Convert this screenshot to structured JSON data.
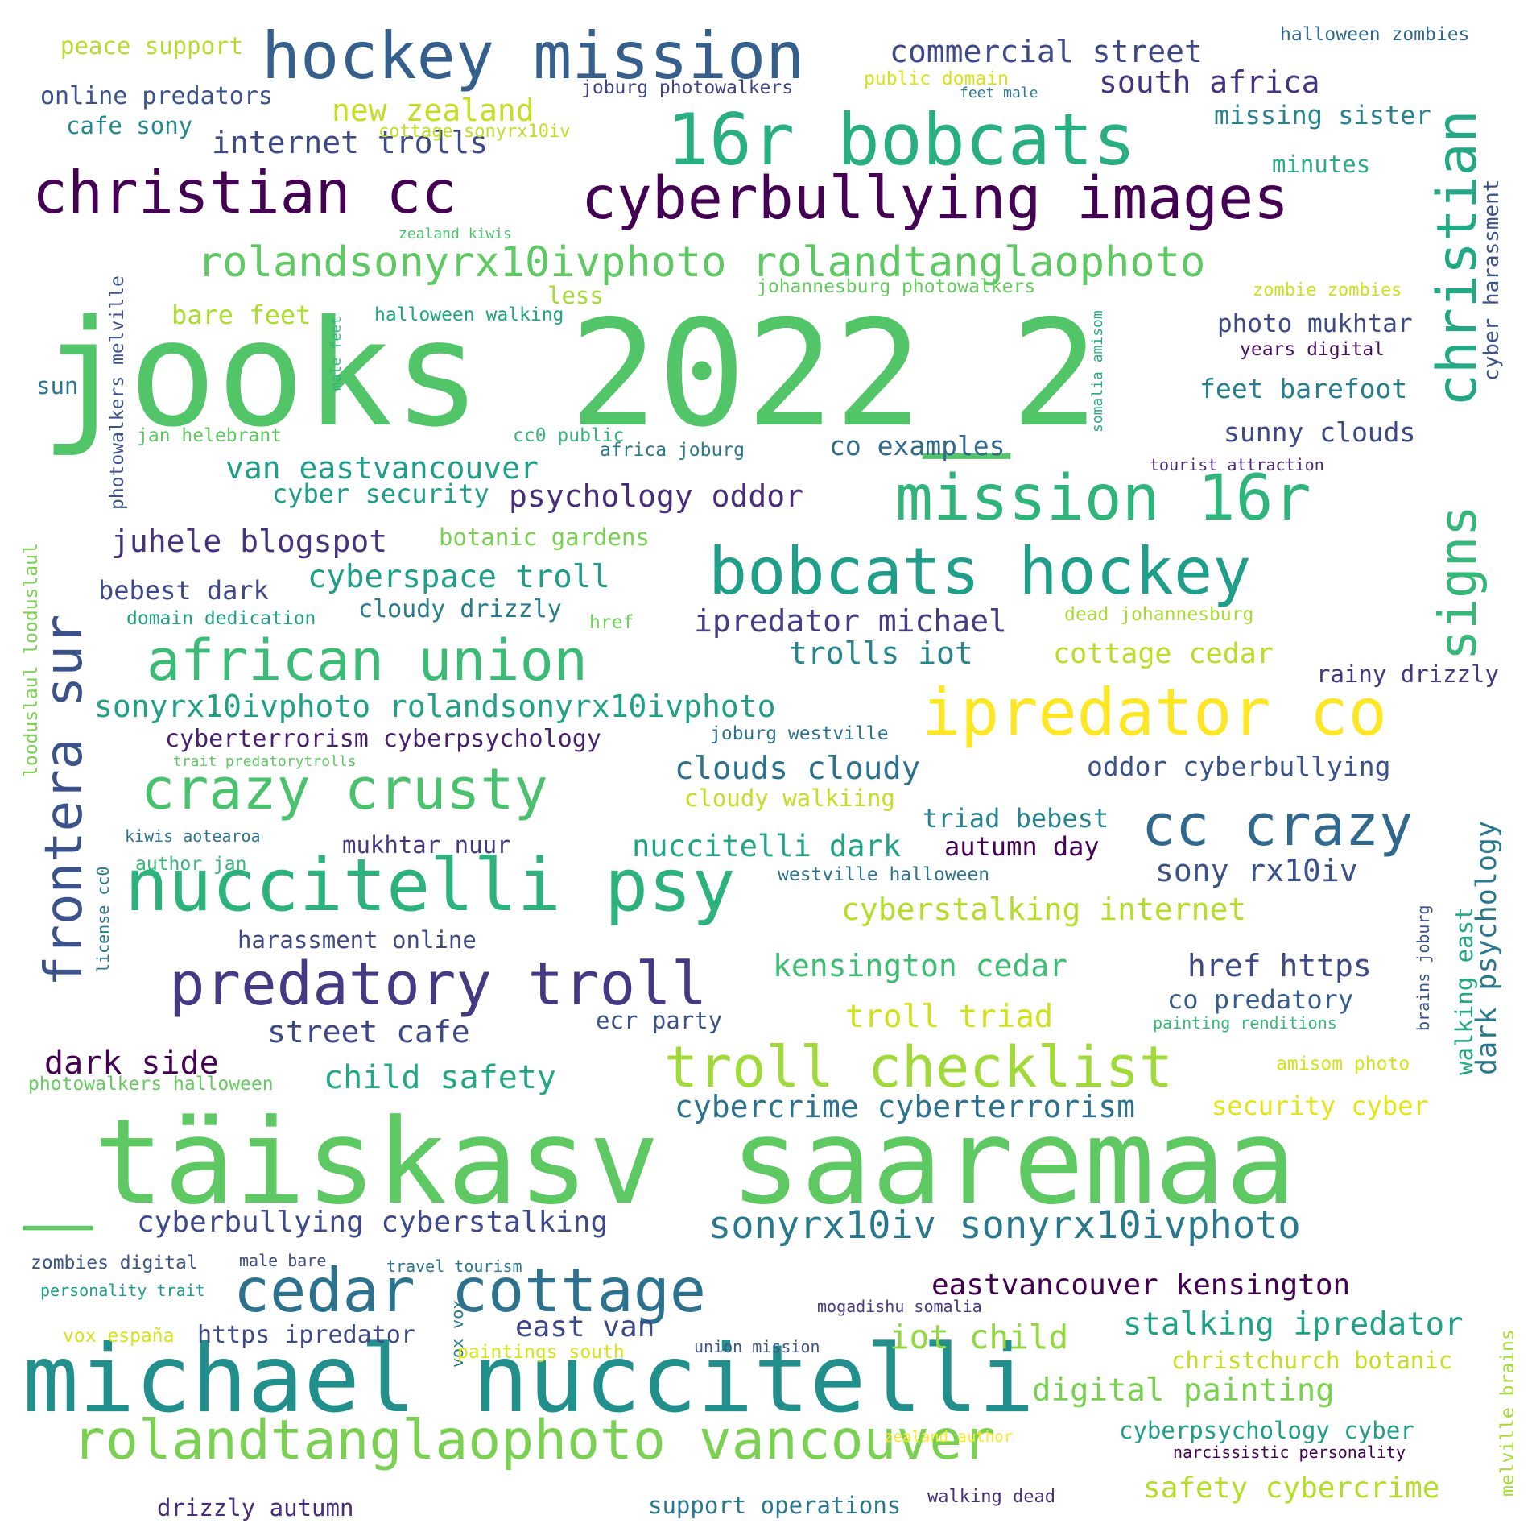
{
  "words": [
    {
      "text": "jooks 2022_2",
      "color": "#52c569"
    },
    {
      "text": "_täiskasv saaremaa",
      "color": "#5ec962"
    },
    {
      "text": "michael nuccitelli",
      "color": "#21908d"
    },
    {
      "text": "hockey mission",
      "color": "#355f8d"
    },
    {
      "text": "16r bobcats",
      "color": "#29af7f"
    },
    {
      "text": "cyberbullying images",
      "color": "#440154"
    },
    {
      "text": "christian cc",
      "color": "#440154"
    },
    {
      "text": "rolandsonyrx10ivphoto rolandtanglaophoto",
      "color": "#5ec962"
    },
    {
      "text": "christian",
      "color": "#22a884"
    },
    {
      "text": "mission 16r",
      "color": "#2fb47c"
    },
    {
      "text": "bobcats hockey",
      "color": "#1f9e89"
    },
    {
      "text": "frontera sur",
      "color": "#3b528b"
    },
    {
      "text": "signs",
      "color": "#35b779"
    },
    {
      "text": "african union",
      "color": "#3bbb75"
    },
    {
      "text": "ipredator co",
      "color": "#fde725"
    },
    {
      "text": "crazy crusty",
      "color": "#4ac16d"
    },
    {
      "text": "cc crazy",
      "color": "#31688e"
    },
    {
      "text": "nuccitelli psy",
      "color": "#2db27d"
    },
    {
      "text": "predatory troll",
      "color": "#443983"
    },
    {
      "text": "troll checklist",
      "color": "#a0da39"
    },
    {
      "text": "cedar cottage",
      "color": "#2c728e"
    },
    {
      "text": "rolandtanglaophoto vancouver",
      "color": "#7ad151"
    },
    {
      "text": "sonyrx10iv sonyrx10ivphoto",
      "color": "#2a788e"
    },
    {
      "text": "commercial street",
      "color": "#3e4989"
    },
    {
      "text": "south africa",
      "color": "#46327e"
    },
    {
      "text": "new zealand",
      "color": "#c2df23"
    },
    {
      "text": "internet trolls",
      "color": "#3e4989"
    },
    {
      "text": "online predators",
      "color": "#3b528b"
    },
    {
      "text": "peace support",
      "color": "#b5de2b"
    },
    {
      "text": "cafe sony",
      "color": "#23888e"
    },
    {
      "text": "joburg photowalkers",
      "color": "#414487"
    },
    {
      "text": "public domain",
      "color": "#d8e219"
    },
    {
      "text": "feet male",
      "color": "#2a788e"
    },
    {
      "text": "halloween zombies",
      "color": "#31688e"
    },
    {
      "text": "missing sister",
      "color": "#26828e"
    },
    {
      "text": "minutes",
      "color": "#29af7f"
    },
    {
      "text": "cyber harassment",
      "color": "#3b528b"
    },
    {
      "text": "cottage sonyrx10iv",
      "color": "#bddf26"
    },
    {
      "text": "zealand kiwis",
      "color": "#4ac16d"
    },
    {
      "text": "less",
      "color": "#a5db36"
    },
    {
      "text": "bare feet",
      "color": "#addc30"
    },
    {
      "text": "halloween walking",
      "color": "#20a386"
    },
    {
      "text": "johannesburg photowalkers",
      "color": "#65cb5e"
    },
    {
      "text": "somalia amisom",
      "color": "#26ad81"
    },
    {
      "text": "zombie zombies",
      "color": "#d0e11c"
    },
    {
      "text": "photo mukhtar",
      "color": "#3e4989"
    },
    {
      "text": "years digital",
      "color": "#471063"
    },
    {
      "text": "feet barefoot",
      "color": "#277f8e"
    },
    {
      "text": "male feet",
      "color": "#2fb47c"
    },
    {
      "text": "photowalkers melville",
      "color": "#3b528b"
    },
    {
      "text": "sun",
      "color": "#2a788e"
    },
    {
      "text": "jan helebrant",
      "color": "#5ec962"
    },
    {
      "text": "cc0 public",
      "color": "#35b779"
    },
    {
      "text": "africa joburg",
      "color": "#2a788e"
    },
    {
      "text": "co examples",
      "color": "#306a8e"
    },
    {
      "text": "sunny clouds",
      "color": "#3e4989"
    },
    {
      "text": "tourist attraction",
      "color": "#482878"
    },
    {
      "text": "van eastvancouver",
      "color": "#1f9e89"
    },
    {
      "text": "cyber security",
      "color": "#1f9e89"
    },
    {
      "text": "psychology oddor",
      "color": "#472d7b"
    },
    {
      "text": "juhele blogspot",
      "color": "#46327e"
    },
    {
      "text": "botanic gardens",
      "color": "#7ad151"
    },
    {
      "text": "looduslaul looduslaul",
      "color": "#7ad151"
    },
    {
      "text": "cyberspace troll",
      "color": "#1f9e89"
    },
    {
      "text": "bebest dark",
      "color": "#3e4989"
    },
    {
      "text": "domain dedication",
      "color": "#1fa187"
    },
    {
      "text": "cloudy drizzly",
      "color": "#287c8e"
    },
    {
      "text": "href",
      "color": "#6ece58"
    },
    {
      "text": "ipredator michael",
      "color": "#433e85"
    },
    {
      "text": "dead johannesburg",
      "color": "#a8db34"
    },
    {
      "text": "trolls iot",
      "color": "#25848e"
    },
    {
      "text": "cottage cedar",
      "color": "#bade28"
    },
    {
      "text": "rainy drizzly",
      "color": "#453781"
    },
    {
      "text": "sonyrx10ivphoto rolandsonyrx10ivphoto",
      "color": "#1fa187"
    },
    {
      "text": "cyberterrorism cyberpsychology",
      "color": "#482071"
    },
    {
      "text": "joburg westville",
      "color": "#2c728e"
    },
    {
      "text": "trait predatorytrolls",
      "color": "#5ec962"
    },
    {
      "text": "clouds cloudy",
      "color": "#2c728e"
    },
    {
      "text": "oddor cyberbullying",
      "color": "#3b528b"
    },
    {
      "text": "cloudy walkiing",
      "color": "#c2df23"
    },
    {
      "text": "triad bebest",
      "color": "#25848e"
    },
    {
      "text": "kiwis aotearoa",
      "color": "#2c728e"
    },
    {
      "text": "license cc0",
      "color": "#2a788e"
    },
    {
      "text": "mukhtar nuur",
      "color": "#443a83"
    },
    {
      "text": "author jan",
      "color": "#35b779"
    },
    {
      "text": "nuccitelli dark",
      "color": "#20a386"
    },
    {
      "text": "autumn day",
      "color": "#440154"
    },
    {
      "text": "sony rx10iv",
      "color": "#3b528b"
    },
    {
      "text": "westville halloween",
      "color": "#2c728e"
    },
    {
      "text": "dark psychology",
      "color": "#2a788e"
    },
    {
      "text": "cyberstalking internet",
      "color": "#b5de2b"
    },
    {
      "text": "harassment online",
      "color": "#3e4989"
    },
    {
      "text": "kensington cedar",
      "color": "#3dbc74"
    },
    {
      "text": "href https",
      "color": "#3e4989"
    },
    {
      "text": "brains joburg",
      "color": "#3b528b"
    },
    {
      "text": "walking east",
      "color": "#22a884"
    },
    {
      "text": "co predatory",
      "color": "#365d8d"
    },
    {
      "text": "painting renditions",
      "color": "#35b779"
    },
    {
      "text": "troll triad",
      "color": "#d0e11c"
    },
    {
      "text": "street cafe",
      "color": "#3e4989"
    },
    {
      "text": "ecr party",
      "color": "#3b528b"
    },
    {
      "text": "dark side",
      "color": "#440154"
    },
    {
      "text": "photowalkers halloween",
      "color": "#65cb5e"
    },
    {
      "text": "child safety",
      "color": "#22a884"
    },
    {
      "text": "amisom photo",
      "color": "#d8e219"
    },
    {
      "text": "cybercrime cyberterrorism",
      "color": "#2c728e"
    },
    {
      "text": "security cyber",
      "color": "#e5e419"
    },
    {
      "text": "cyberbullying cyberstalking",
      "color": "#3e4989"
    },
    {
      "text": "zombies digital",
      "color": "#3b528b"
    },
    {
      "text": "male bare",
      "color": "#3e4989"
    },
    {
      "text": "travel tourism",
      "color": "#2a788e"
    },
    {
      "text": "personality trait",
      "color": "#1f9e89"
    },
    {
      "text": "mogadishu somalia",
      "color": "#443983"
    },
    {
      "text": "eastvancouver kensington",
      "color": "#440154"
    },
    {
      "text": "stalking ipredator",
      "color": "#1fa187"
    },
    {
      "text": "vox españa",
      "color": "#d8e219"
    },
    {
      "text": "https ipredator",
      "color": "#3e4989"
    },
    {
      "text": "vox vox",
      "color": "#2a788e"
    },
    {
      "text": "east van",
      "color": "#3e4989"
    },
    {
      "text": "paintings south",
      "color": "#d8e219"
    },
    {
      "text": "union mission",
      "color": "#3b528b"
    },
    {
      "text": "iot child",
      "color": "#93d741"
    },
    {
      "text": "christchurch botanic",
      "color": "#c2df23"
    },
    {
      "text": "melville brains",
      "color": "#a5db36"
    },
    {
      "text": "digital painting",
      "color": "#7ad151"
    },
    {
      "text": "zealand author",
      "color": "#fde725"
    },
    {
      "text": "cyberpsychology cyber",
      "color": "#1f9e89"
    },
    {
      "text": "narcissistic personality",
      "color": "#440154"
    },
    {
      "text": "safety cybercrime",
      "color": "#b5de2b"
    },
    {
      "text": "walking dead",
      "color": "#472d7b"
    },
    {
      "text": "support operations",
      "color": "#2a788e"
    },
    {
      "text": "drizzly autumn",
      "color": "#472d7b"
    }
  ]
}
